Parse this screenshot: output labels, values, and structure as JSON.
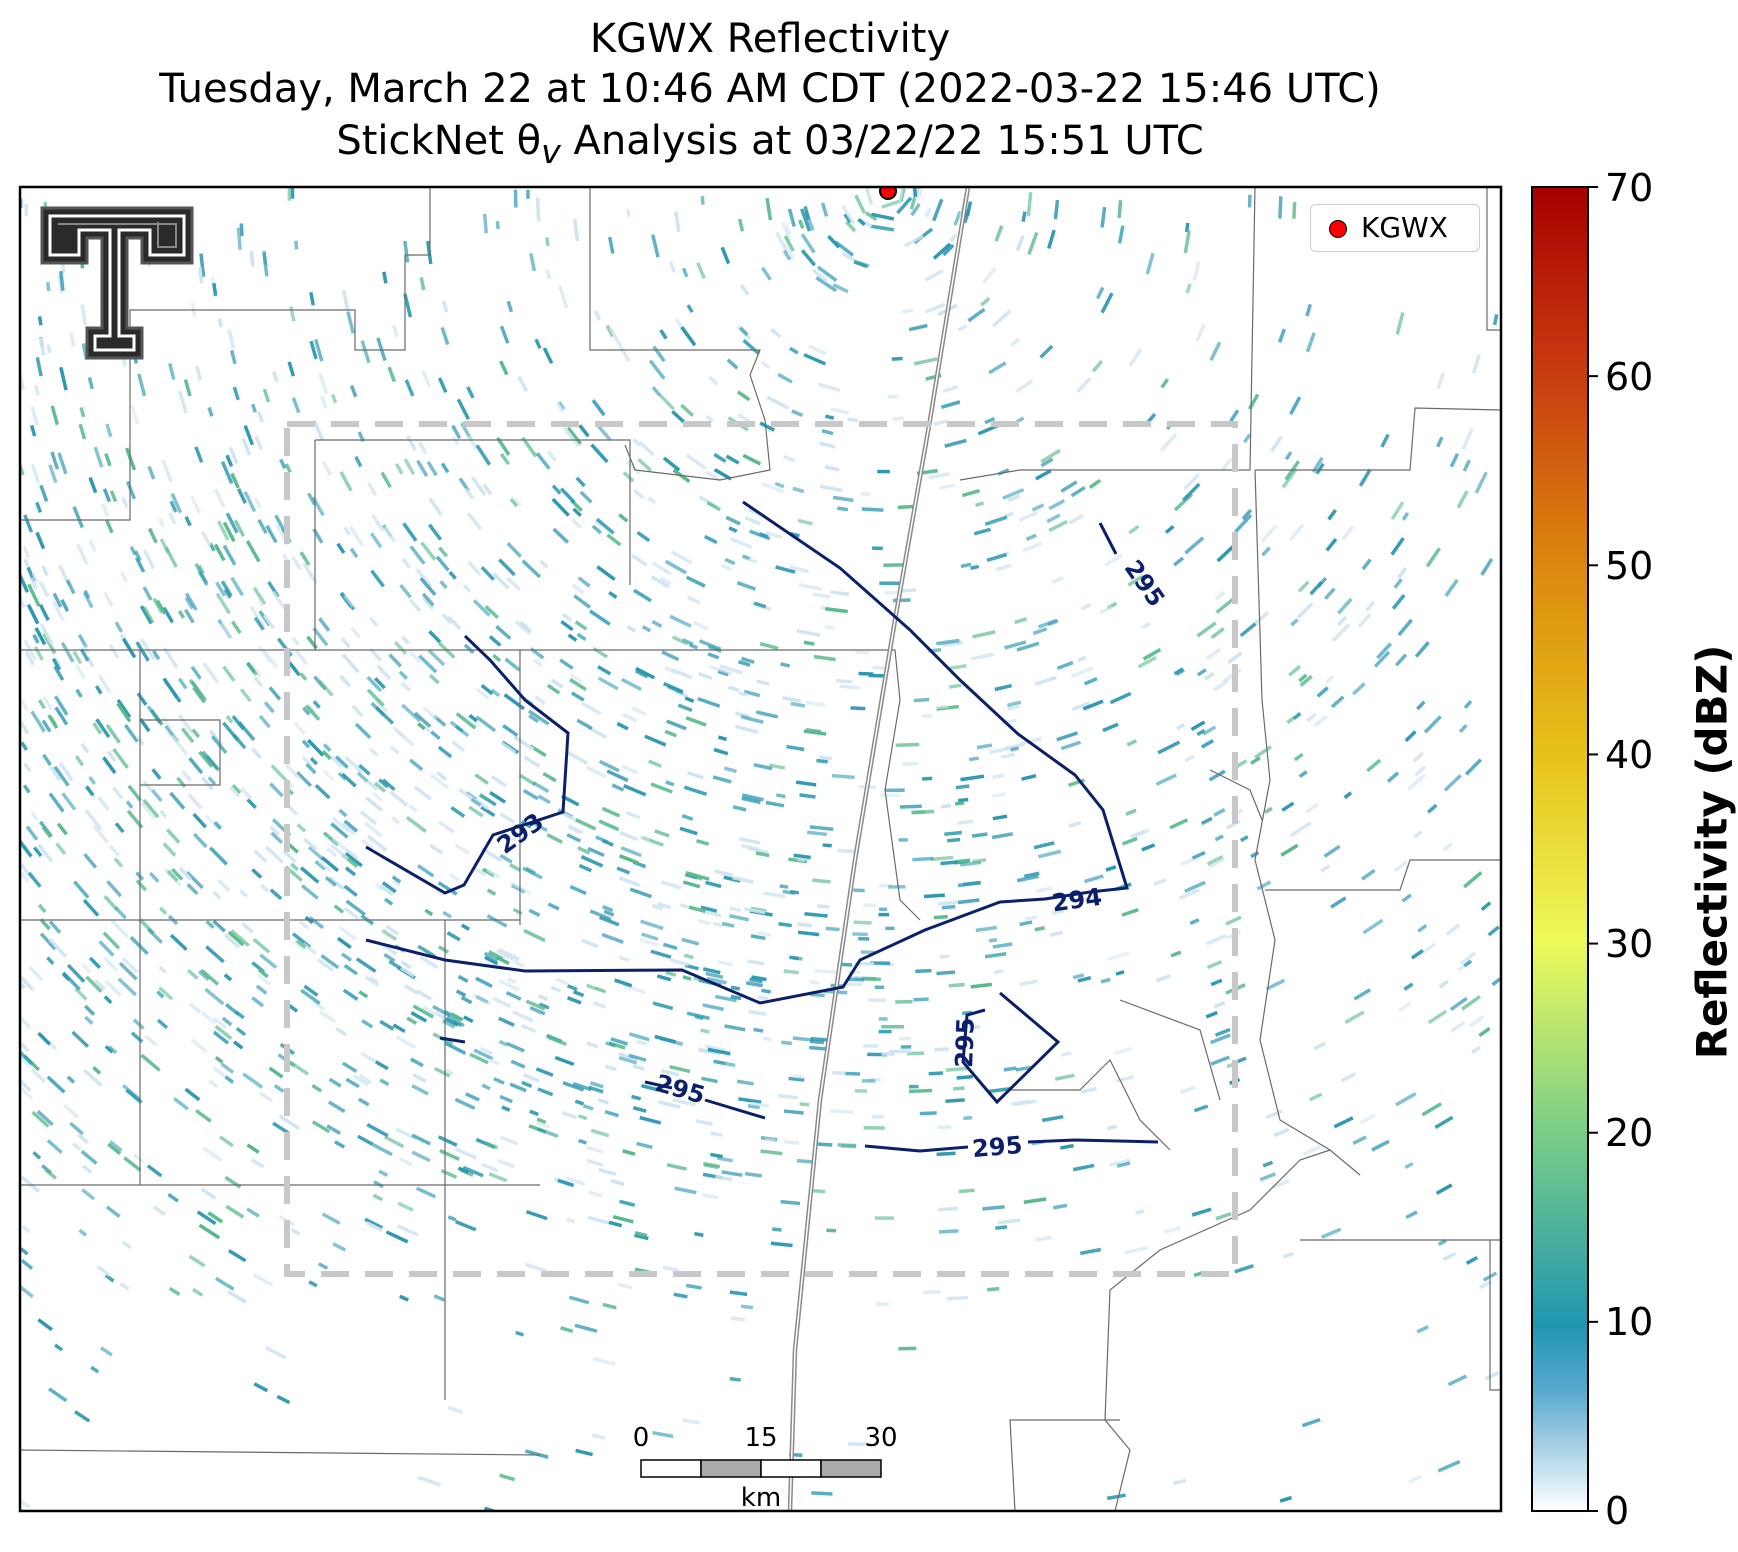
{
  "title": {
    "line1": "KGWX Reflectivity",
    "line2": "Tuesday, March 22 at 10:46 AM CDT (2022-03-22 15:46 UTC)",
    "line3": "StickNet θv Analysis at 03/22/22 15:51 UTC"
  },
  "radar": {
    "name": "KGWX",
    "marker_color": "#ff0000"
  },
  "legend": {
    "label": "KGWX"
  },
  "colorbar": {
    "label": "Reflectivity (dBZ)",
    "min": 0,
    "max": 70,
    "ticks": [
      "0",
      "10",
      "20",
      "30",
      "40",
      "50",
      "60",
      "70"
    ]
  },
  "contours": {
    "color": "#0b1f6b",
    "labels": [
      "293",
      "294",
      "295",
      "295",
      "295",
      "295"
    ]
  },
  "scale_bar": {
    "ticks": [
      "0",
      "15",
      "30"
    ],
    "unit": "km"
  },
  "colors": {
    "echo_low": "#cfe3f1",
    "echo_mid": "#2b97b0",
    "echo_high": "#56b98a",
    "analysis_box": "#c8c8c8",
    "boundaries": "#606060",
    "highway": "#777777"
  },
  "logo": {
    "icon": "texas-tech-double-t-logo"
  }
}
